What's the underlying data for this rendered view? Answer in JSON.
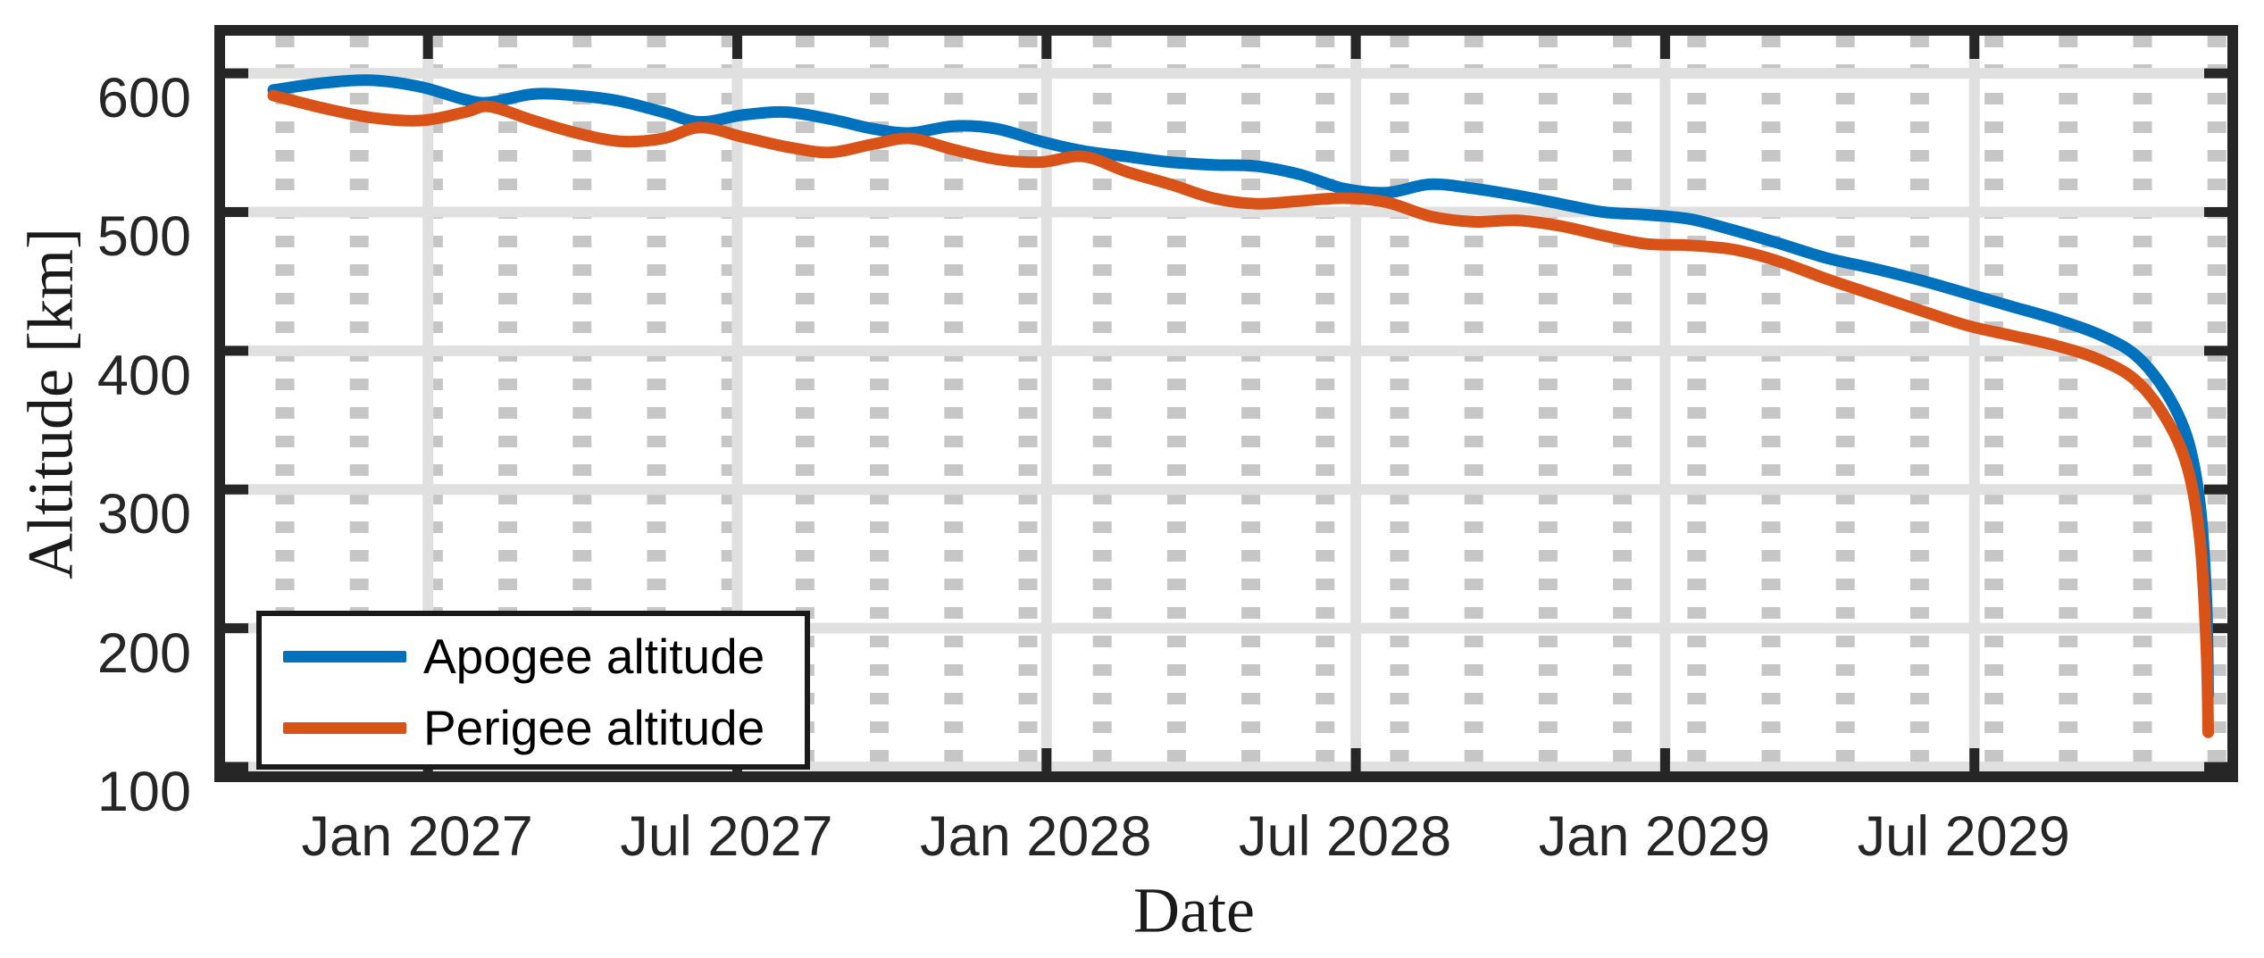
{
  "figure_background": "#ffffff",
  "colors": {
    "axis": "#262626",
    "label_text": "#1a1a1a",
    "major_grid": "#e0e0e0",
    "minor_grid": "#c6c6c6",
    "apogee_line": "#0072BD",
    "perigee_line": "#D95319"
  },
  "legend": {
    "items": [
      {
        "label": "Apogee altitude",
        "color": "#0072BD"
      },
      {
        "label": "Perigee altitude",
        "color": "#D95319"
      }
    ],
    "position": "southwest"
  },
  "chart_data": {
    "type": "line",
    "title": "",
    "xlabel": "Date",
    "ylabel": "Altitude [km]",
    "xlim": [
      2026.672,
      2029.909
    ],
    "ylim": [
      96.8,
      627.1
    ],
    "x_ticks": [
      2027.0,
      2027.5,
      2028.0,
      2028.5,
      2029.0,
      2029.5
    ],
    "x_tick_labels": [
      "Jan 2027",
      "Jul 2027",
      "Jan 2028",
      "Jul 2028",
      "Jan 2029",
      "Jul 2029"
    ],
    "y_ticks": [
      100,
      200,
      300,
      400,
      500,
      600
    ],
    "y_tick_labels": [
      "100",
      "200",
      "300",
      "400",
      "500",
      "600"
    ],
    "grid": "on",
    "x_minor_grid": "on",
    "x_unit": "decimal_year",
    "series": [
      {
        "name": "Apogee altitude",
        "color": "#0072BD",
        "x": [
          2026.75,
          2026.83,
          2026.91,
          2026.99,
          2027.06,
          2027.1,
          2027.17,
          2027.24,
          2027.31,
          2027.38,
          2027.44,
          2027.51,
          2027.58,
          2027.65,
          2027.72,
          2027.78,
          2027.85,
          2027.92,
          2027.99,
          2028.06,
          2028.13,
          2028.2,
          2028.27,
          2028.34,
          2028.41,
          2028.48,
          2028.55,
          2028.62,
          2028.69,
          2028.76,
          2028.83,
          2028.9,
          2028.97,
          2029.04,
          2029.11,
          2029.18,
          2029.26,
          2029.34,
          2029.42,
          2029.49,
          2029.56,
          2029.63,
          2029.7,
          2029.76,
          2029.81,
          2029.845,
          2029.865,
          2029.875,
          2029.878
        ],
        "y": [
          588,
          593,
          595,
          590,
          581,
          579,
          585,
          584,
          580,
          572,
          565,
          570,
          572,
          567,
          560,
          557,
          562,
          560,
          551,
          544,
          540,
          536,
          534,
          533,
          527,
          517,
          514,
          520,
          517,
          512,
          506,
          500,
          498,
          495,
          487,
          478,
          467,
          459,
          450,
          441,
          432,
          423,
          412,
          397,
          370,
          336,
          288,
          220,
          152
        ]
      },
      {
        "name": "Perigee altitude",
        "color": "#D95319",
        "x": [
          2026.75,
          2026.83,
          2026.91,
          2026.99,
          2027.06,
          2027.1,
          2027.17,
          2027.24,
          2027.31,
          2027.38,
          2027.44,
          2027.51,
          2027.58,
          2027.65,
          2027.72,
          2027.78,
          2027.85,
          2027.92,
          2027.99,
          2028.06,
          2028.13,
          2028.2,
          2028.27,
          2028.34,
          2028.41,
          2028.48,
          2028.55,
          2028.62,
          2028.69,
          2028.76,
          2028.83,
          2028.9,
          2028.97,
          2029.04,
          2029.11,
          2029.18,
          2029.26,
          2029.34,
          2029.42,
          2029.49,
          2029.56,
          2029.63,
          2029.7,
          2029.76,
          2029.81,
          2029.845,
          2029.865,
          2029.875,
          2029.878
        ],
        "y": [
          584,
          575,
          568,
          566,
          572,
          576,
          566,
          557,
          551,
          553,
          561,
          554,
          547,
          543,
          549,
          553,
          545,
          538,
          536,
          540,
          529,
          520,
          510,
          506,
          508,
          510,
          507,
          497,
          493,
          494,
          490,
          483,
          477,
          476,
          473,
          465,
          452,
          440,
          428,
          418,
          411,
          404,
          394,
          379,
          351,
          315,
          262,
          185,
          125
        ]
      }
    ]
  }
}
